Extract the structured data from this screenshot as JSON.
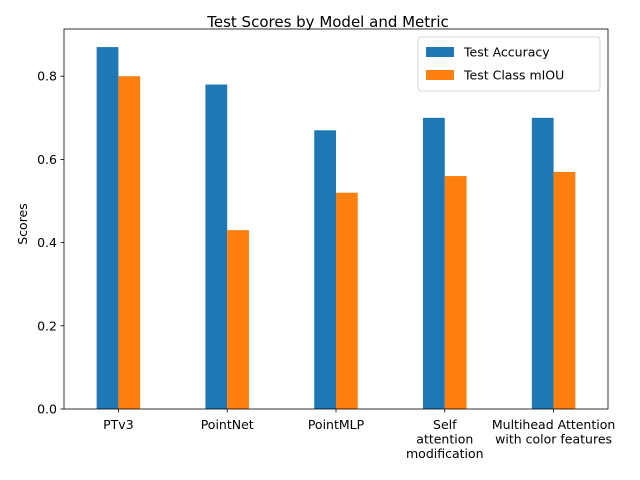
{
  "chart_data": {
    "type": "bar",
    "title": "Test Scores by Model and Metric",
    "xlabel": "",
    "ylabel": "Scores",
    "categories": [
      [
        "PTv3"
      ],
      [
        "PointNet"
      ],
      [
        "PointMLP"
      ],
      [
        "Self",
        "attention",
        "modification"
      ],
      [
        "Multihead Attention",
        "with color features"
      ]
    ],
    "series": [
      {
        "name": "Test Accuracy",
        "color": "#1f77b4",
        "values": [
          0.87,
          0.78,
          0.67,
          0.7,
          0.7
        ]
      },
      {
        "name": "Test Class mIOU",
        "color": "#ff7f0e",
        "values": [
          0.8,
          0.43,
          0.52,
          0.56,
          0.57
        ]
      }
    ],
    "ylim": [
      0,
      0.9135
    ],
    "yticks": [
      "0.0",
      "0.2",
      "0.4",
      "0.6",
      "0.8"
    ],
    "grid": false,
    "legend": "top-right"
  }
}
